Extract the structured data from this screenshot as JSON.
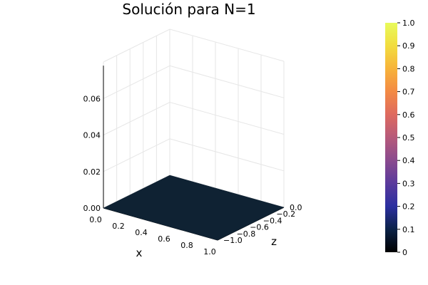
{
  "chart_data": {
    "type": "surface",
    "title": "Solución para N=1",
    "xlabel": "x",
    "ylabel": "z",
    "zlabel": "",
    "x_ticks": [
      "0.0",
      "0.2",
      "0.4",
      "0.6",
      "0.8",
      "1.0"
    ],
    "y_ticks": [
      "0.0",
      "−0.2",
      "−0.4",
      "−0.6",
      "−0.8",
      "−1.0"
    ],
    "z_ticks": [
      "0.00",
      "0.02",
      "0.04",
      "0.06"
    ],
    "xlim": [
      0,
      1
    ],
    "ylim": [
      -1,
      0
    ],
    "zlim": [
      0,
      0.08
    ],
    "surface": {
      "x": [
        0,
        1
      ],
      "y": [
        0,
        -1
      ],
      "value": 0,
      "color": "#0f2233"
    },
    "grid": true,
    "colorbar": {
      "range": [
        0,
        1
      ],
      "ticks": [
        "0",
        "0.1",
        "0.2",
        "0.3",
        "0.4",
        "0.5",
        "0.6",
        "0.7",
        "0.8",
        "0.9",
        "1.0"
      ],
      "colors": [
        "#000000",
        "#0b2247",
        "#2b2fa0",
        "#5a3a9c",
        "#8a4a8e",
        "#b65a7a",
        "#de6a5f",
        "#f38a44",
        "#f7b33a",
        "#f2dd3f",
        "#e8fa5b"
      ]
    }
  }
}
